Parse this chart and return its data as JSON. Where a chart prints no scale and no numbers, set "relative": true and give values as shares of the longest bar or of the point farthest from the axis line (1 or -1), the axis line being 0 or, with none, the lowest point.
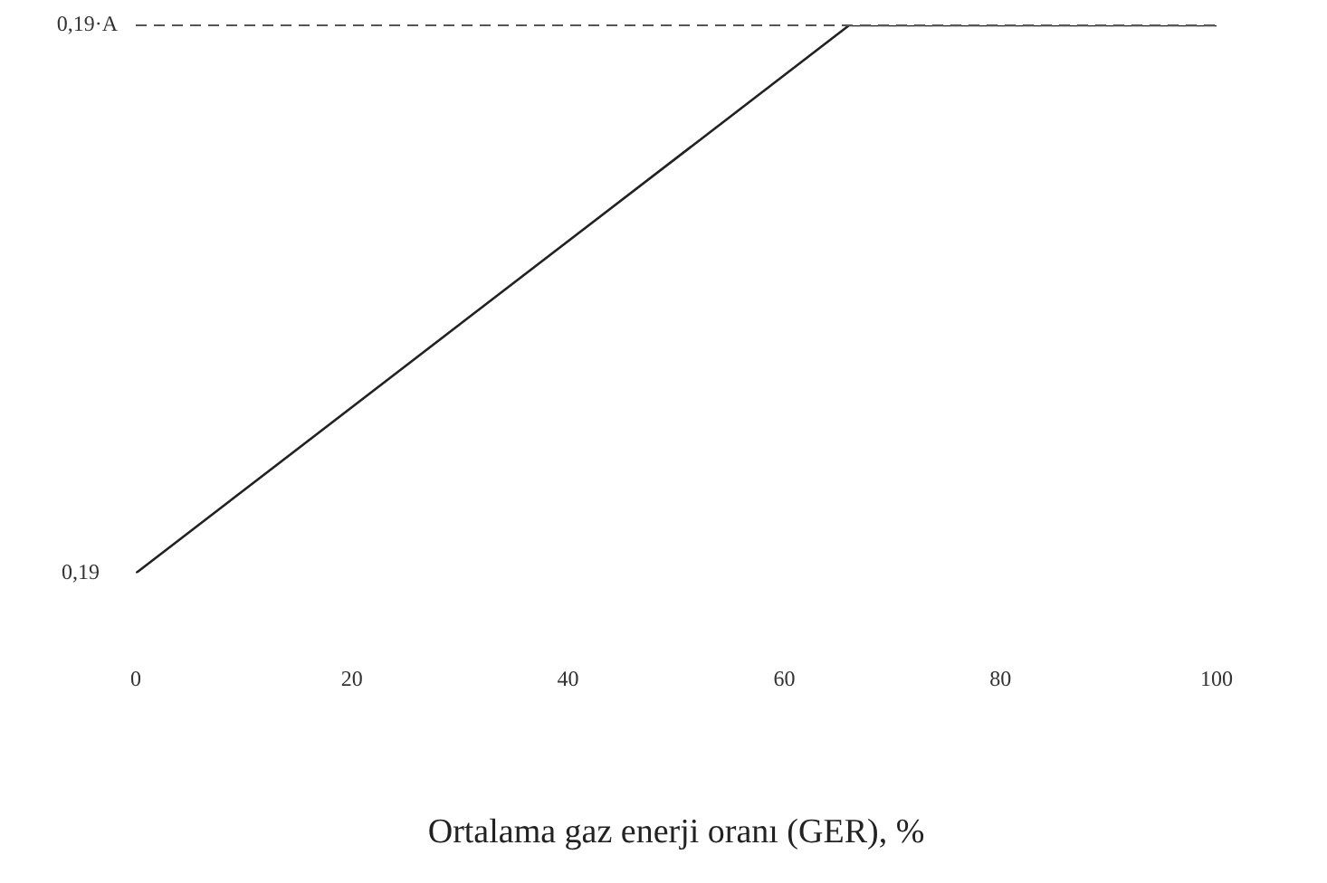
{
  "chart_data": {
    "type": "line",
    "relative": true,
    "xlabel": "Ortalama gaz enerji oranı (GER), %",
    "x": [
      0,
      66,
      100
    ],
    "series": [
      {
        "color": "#222222",
        "values": [
          0,
          1,
          1
        ]
      }
    ],
    "xlim": [
      0,
      100
    ],
    "xticks": [
      0,
      20,
      40,
      60,
      80,
      100
    ],
    "ref_lines": [
      {
        "axis": "y",
        "value": 1,
        "label": "0,19·A",
        "color": "#555555",
        "line_style": "dashed"
      }
    ],
    "annotations": [
      {
        "text": "0,19",
        "x": 0,
        "y": 0
      }
    ],
    "grid": false,
    "legend": false,
    "marker": "none",
    "line_style": "solid"
  }
}
